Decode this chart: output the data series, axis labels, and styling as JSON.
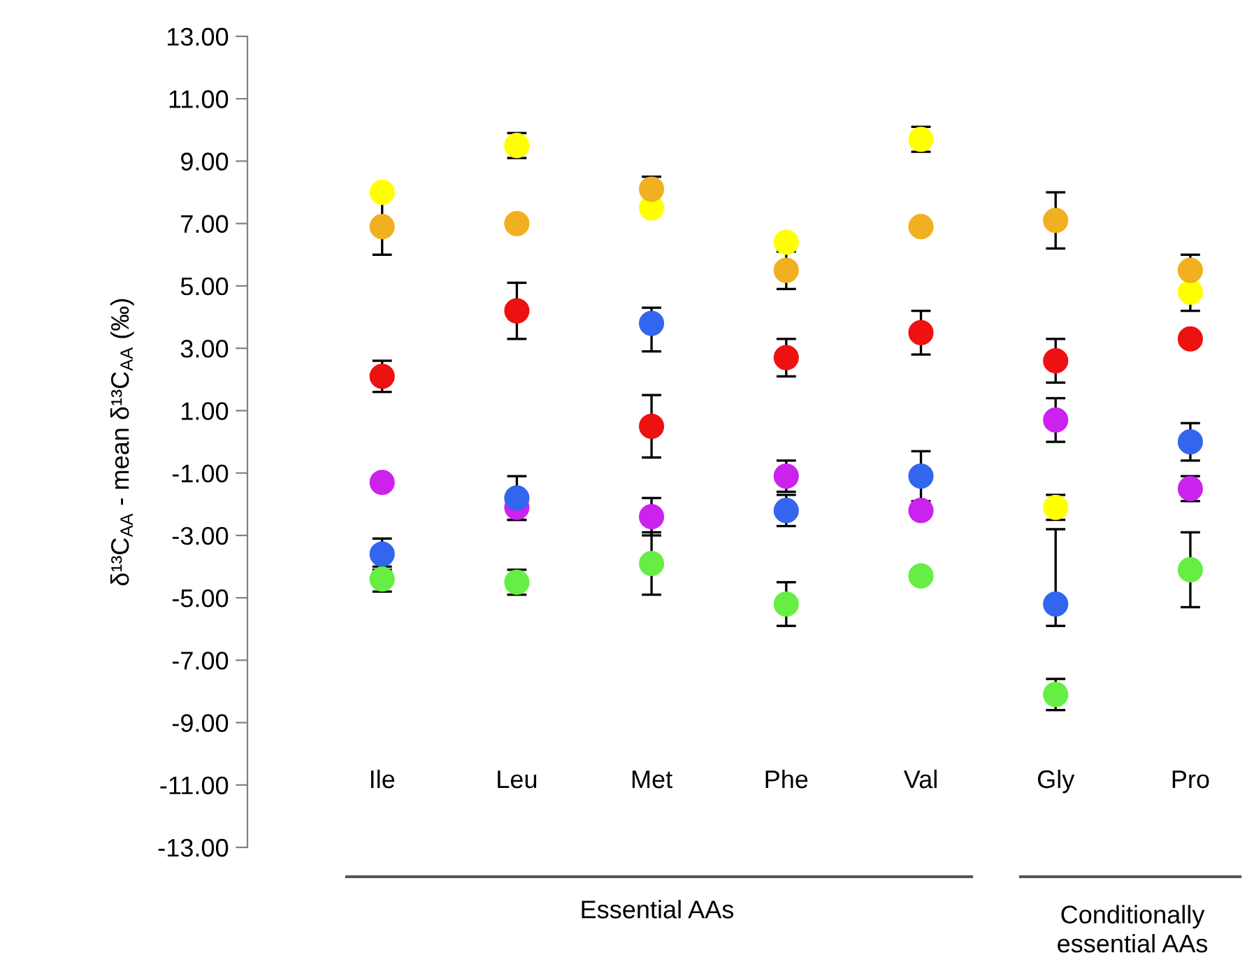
{
  "chart_data": {
    "type": "scatter",
    "ylabel": "δ¹³C$_{AA}$ - mean δ¹³C$_{AA}$ (‰)",
    "categories": [
      "Ile",
      "Leu",
      "Met",
      "Phe",
      "Val",
      "Gly",
      "Pro"
    ],
    "series": [
      {
        "color": "#ffff00",
        "values": [
          8.0,
          9.5,
          7.5,
          6.4,
          9.7,
          -2.1,
          4.8
        ],
        "errors": [
          null,
          0.4,
          null,
          null,
          0.4,
          0.4,
          0.6
        ]
      },
      {
        "color": "#f0b020",
        "values": [
          6.9,
          7.0,
          8.1,
          5.5,
          6.9,
          7.1,
          5.5
        ],
        "errors": [
          0.9,
          null,
          0.4,
          0.6,
          null,
          0.9,
          0.5
        ]
      },
      {
        "color": "#ee1111",
        "values": [
          2.1,
          4.2,
          0.5,
          2.7,
          3.5,
          2.6,
          3.3
        ],
        "errors": [
          0.5,
          0.9,
          1.0,
          0.6,
          0.7,
          0.7,
          null
        ]
      },
      {
        "color": "#cc22ee",
        "values": [
          -1.3,
          -2.1,
          -2.4,
          -1.1,
          -2.2,
          0.7,
          -1.5
        ],
        "errors": [
          null,
          0.4,
          0.6,
          0.5,
          null,
          0.7,
          0.4
        ]
      },
      {
        "color": "#3366ee",
        "values": [
          -3.6,
          -1.8,
          3.8,
          -2.2,
          -1.1,
          -5.2,
          0.0
        ],
        "errors": [
          0.5,
          0.7,
          [
            2.9,
            4.3
          ],
          0.5,
          0.8,
          [
            -5.9,
            -2.8
          ],
          0.6
        ]
      },
      {
        "color": "#66ee44",
        "values": [
          -4.4,
          -4.5,
          -3.9,
          -5.2,
          -4.3,
          -8.1,
          -4.1
        ],
        "errors": [
          0.4,
          0.4,
          1.0,
          0.7,
          null,
          0.5,
          [
            -5.3,
            -2.9
          ]
        ]
      }
    ],
    "ylim": [
      -13,
      13
    ],
    "yticks": [
      {
        "value": -13,
        "label": "-13.00"
      },
      {
        "value": -11,
        "label": "-11.00"
      },
      {
        "value": -9,
        "label": "-9.00"
      },
      {
        "value": -7,
        "label": "-7.00"
      },
      {
        "value": -5,
        "label": "-5.00"
      },
      {
        "value": -3,
        "label": "-3.00"
      },
      {
        "value": -1,
        "label": "-1.00"
      },
      {
        "value": 1,
        "label": "1.00"
      },
      {
        "value": 3,
        "label": "3.00"
      },
      {
        "value": 5,
        "label": "5.00"
      },
      {
        "value": 7,
        "label": "7.00"
      },
      {
        "value": 9,
        "label": "9.00"
      },
      {
        "value": 11,
        "label": "11.00"
      },
      {
        "value": 13,
        "label": "13.00"
      }
    ],
    "annotations": [
      "Essential AAs",
      "Conditionally\nessential AAs"
    ],
    "marker": "circle"
  }
}
